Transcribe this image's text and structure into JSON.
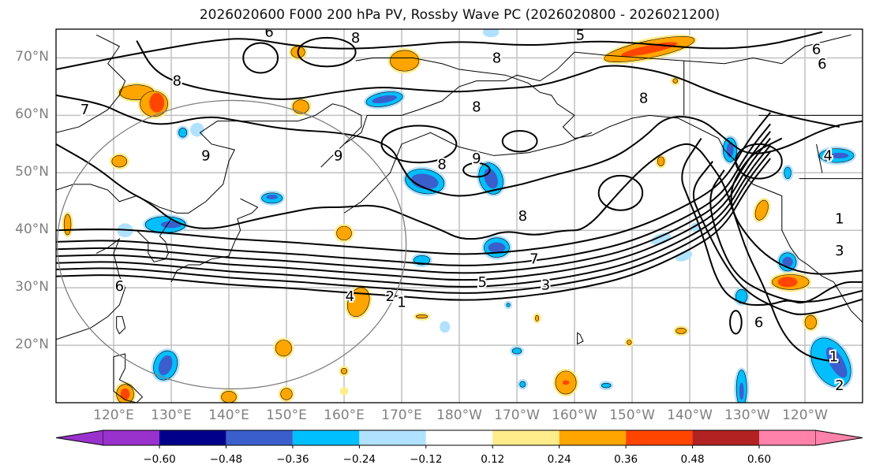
{
  "title": "2026020600 F000 200 hPa PV, Rossby Wave PC (2026020800 - 2026021200)",
  "map": {
    "projection": "PlateCarree (Pacific-centered)",
    "lat_range": [
      10,
      75
    ],
    "lon_range_east": [
      110,
      250
    ],
    "lat_labels": [
      "70°N",
      "60°N",
      "50°N",
      "40°N",
      "30°N",
      "20°N"
    ],
    "lat_values": [
      70,
      60,
      50,
      40,
      30,
      20
    ],
    "lon_labels": [
      "120°E",
      "130°E",
      "140°E",
      "150°E",
      "160°E",
      "170°E",
      "180°W",
      "170°W",
      "160°W",
      "150°W",
      "140°W",
      "130°W",
      "120°W"
    ],
    "lon_values": [
      120,
      130,
      140,
      150,
      160,
      170,
      180,
      190,
      200,
      210,
      220,
      230,
      240
    ],
    "grid": true,
    "pv_contour_labels": [
      "1",
      "2",
      "3",
      "4",
      "5",
      "6",
      "7",
      "8",
      "9"
    ],
    "region_circle": {
      "center_label": "~139°E, 40°N",
      "description": "gray great-circle ring"
    }
  },
  "colorbar": {
    "ticks": [
      "−0.60",
      "−0.48",
      "−0.36",
      "−0.24",
      "−0.12",
      "0.12",
      "0.24",
      "0.36",
      "0.48",
      "0.60"
    ],
    "levels": [
      -0.6,
      -0.48,
      -0.36,
      -0.24,
      -0.12,
      0.12,
      0.24,
      0.36,
      0.48,
      0.6
    ],
    "colors": [
      "#9932cc",
      "#00008b",
      "#3a5fcd",
      "#00bfff",
      "#b0e2ff",
      "#ffffff",
      "#ffec8b",
      "#ffa500",
      "#ff4500",
      "#b22222",
      "#ff82ab"
    ],
    "extend": "both"
  },
  "colors": {
    "axis_label": "#808080",
    "grid": "#c0c0c0",
    "contour": "#000000",
    "circle": "#808080"
  }
}
